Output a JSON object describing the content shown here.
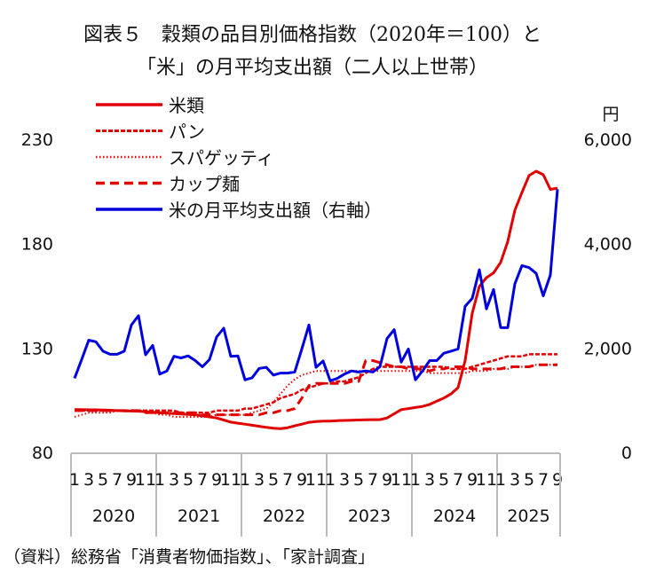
{
  "title_line1": "図表５　穀類の品目別価格指数（2020年＝100）と",
  "title_line2": "「米」の月平均支出額（二人以上世帯）",
  "source": "（資料）総務省「消費者物価指数」、「家計調査」",
  "chart_data": {
    "type": "line",
    "title": "図表５　穀類の品目別価格指数（2020年＝100）と「米」の月平均支出額（二人以上世帯）",
    "xlabel": "",
    "ylabel": "",
    "y2label": "円",
    "ylim": [
      80,
      230
    ],
    "y2lim": [
      0,
      6000
    ],
    "y_ticks": [
      "230",
      "180",
      "130",
      "80"
    ],
    "y_tick_values": [
      230,
      180,
      130,
      80
    ],
    "y2_ticks": [
      "6,000",
      "4,000",
      "2,000",
      "0"
    ],
    "y2_tick_values": [
      6000,
      4000,
      2000,
      0
    ],
    "years": [
      "2020",
      "2021",
      "2022",
      "2023",
      "2024",
      "2025"
    ],
    "month_ticks": [
      "1",
      "3",
      "5",
      "7",
      "9",
      "11"
    ],
    "last_year_months": 9,
    "legend_position": "top-left",
    "series": [
      {
        "name": "米類",
        "axis": "left",
        "style": "solid",
        "color": "#e00000",
        "values": [
          100.5,
          100.5,
          100.4,
          100.4,
          100.3,
          100.2,
          100.0,
          99.9,
          99.8,
          99.7,
          99.5,
          99.3,
          99.0,
          98.8,
          98.6,
          98.4,
          98.2,
          98.0,
          97.5,
          97.0,
          96.5,
          95.5,
          94.5,
          94.0,
          93.5,
          93.0,
          92.5,
          92.0,
          91.6,
          91.4,
          91.8,
          92.7,
          93.5,
          94.4,
          94.8,
          95.0,
          95.0,
          95.2,
          95.3,
          95.4,
          95.5,
          95.6,
          95.7,
          95.7,
          96.5,
          98.5,
          100.5,
          101.0,
          101.5,
          102.0,
          103.0,
          104.5,
          106.0,
          108.0,
          111.0,
          124.0,
          146.7,
          159.5,
          163.7,
          166.0,
          171.0,
          181.0,
          196.0,
          204.5,
          212.6,
          214.7,
          213.0,
          206.0,
          206.6
        ]
      },
      {
        "name": "パン",
        "axis": "left",
        "style": "dense-dash",
        "color": "#e00000",
        "values": [
          100,
          100,
          100,
          100,
          100,
          100,
          100,
          100,
          100,
          100,
          100,
          100,
          100,
          100,
          100,
          99,
          99,
          99,
          99,
          99,
          100,
          100,
          100,
          100,
          101,
          101,
          102,
          103,
          104,
          106,
          107,
          108,
          110,
          111,
          112,
          113,
          113,
          114,
          114,
          115,
          116,
          118,
          120,
          121,
          121,
          121,
          121,
          121,
          121,
          121,
          121,
          121,
          121,
          120,
          120,
          120,
          121,
          122,
          123,
          124,
          125,
          126,
          126,
          126,
          127,
          127,
          127,
          127,
          127
        ]
      },
      {
        "name": "スパゲッティ",
        "axis": "left",
        "style": "dotted",
        "color": "#e00000",
        "values": [
          97,
          98,
          99,
          99,
          99,
          99,
          100,
          100,
          100,
          100,
          99,
          99,
          98,
          98,
          97,
          97,
          97,
          97,
          97,
          97,
          98,
          98,
          98,
          98,
          98,
          99,
          100,
          101,
          104,
          108,
          112,
          115,
          117,
          118,
          119,
          119,
          119,
          119,
          119,
          119,
          119,
          119,
          119,
          119,
          119,
          119,
          119,
          119,
          119,
          119,
          118,
          118,
          118,
          118,
          118,
          118,
          119,
          119,
          119,
          120,
          120,
          120,
          121,
          121,
          121,
          122,
          122,
          122,
          122
        ]
      },
      {
        "name": "カップ麺",
        "axis": "left",
        "style": "long-dash",
        "color": "#e00000",
        "values": [
          100,
          100,
          100,
          100,
          100,
          100,
          100,
          100,
          100,
          100,
          99,
          99,
          99,
          99,
          99,
          99,
          99,
          99,
          98,
          98,
          98,
          98,
          98,
          98,
          98,
          98,
          98,
          99,
          99,
          100,
          100,
          101,
          106,
          112,
          113,
          113,
          113,
          113,
          113,
          114,
          114,
          124,
          124,
          123,
          122,
          121,
          121,
          120,
          120,
          120,
          119,
          120,
          120,
          121,
          121,
          121,
          120,
          120,
          120,
          120,
          120,
          121,
          121,
          121,
          121,
          122,
          122,
          122,
          122
        ]
      },
      {
        "name": "米の月平均支出額（右軸）",
        "axis": "right",
        "style": "solid",
        "color": "#0000dd",
        "values": [
          1420,
          1780,
          2150,
          2120,
          1940,
          1880,
          1880,
          1940,
          2440,
          2620,
          1870,
          2050,
          1500,
          1560,
          1840,
          1810,
          1850,
          1760,
          1640,
          1780,
          2210,
          2380,
          1840,
          1850,
          1390,
          1430,
          1610,
          1630,
          1480,
          1520,
          1520,
          1540,
          1980,
          2440,
          1630,
          1750,
          1370,
          1420,
          1500,
          1560,
          1540,
          1560,
          1540,
          1640,
          2180,
          2350,
          1730,
          1980,
          1390,
          1560,
          1760,
          1760,
          1900,
          1940,
          1980,
          2800,
          2950,
          3500,
          2750,
          3120,
          2390,
          2390,
          3230,
          3580,
          3540,
          3430,
          3000,
          3400,
          5040
        ]
      }
    ]
  }
}
